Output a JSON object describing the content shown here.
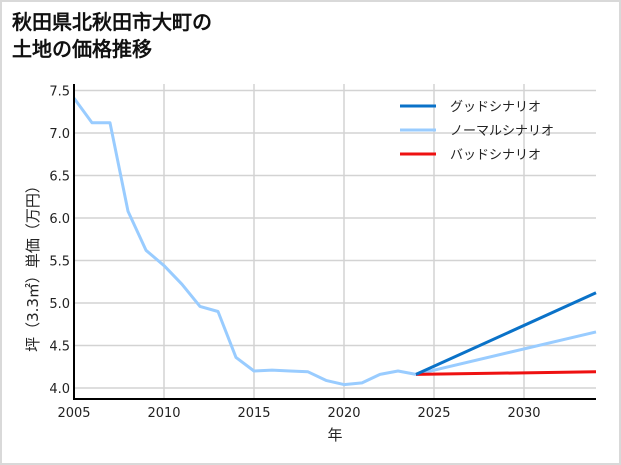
{
  "title": {
    "line1": "秋田県北秋田市大町の",
    "line2": "土地の価格推移"
  },
  "colors": {
    "good": "#0a72c8",
    "normal": "#99ccff",
    "bad": "#ee1111",
    "grid": "#d3d3d3",
    "axis": "#000000",
    "frame": "#d9d9d9"
  },
  "chart_data": {
    "type": "line",
    "title": "秋田県北秋田市大町の土地の価格推移",
    "xlabel": "年",
    "ylabel": "坪（3.3㎡）単価（万円）",
    "xlim": [
      2005,
      2034
    ],
    "ylim": [
      3.87,
      7.6
    ],
    "x_ticks": [
      2005,
      2010,
      2015,
      2020,
      2025,
      2030
    ],
    "y_ticks": [
      4.0,
      4.5,
      5.0,
      5.5,
      6.0,
      6.5,
      7.0,
      7.5
    ],
    "x_tick_labels": [
      "2005",
      "2010",
      "2015",
      "2020",
      "2025",
      "2030"
    ],
    "y_tick_labels": [
      "4.0",
      "4.5",
      "5.0",
      "5.5",
      "6.0",
      "6.5",
      "7.0",
      "7.5"
    ],
    "grid": true,
    "legend_position": "upper right",
    "series": [
      {
        "name": "ノーマルシナリオ",
        "key": "history",
        "x": [
          2005,
          2006,
          2007,
          2008,
          2009,
          2010,
          2011,
          2012,
          2013,
          2014,
          2015,
          2016,
          2017,
          2018,
          2019,
          2020,
          2021,
          2022,
          2023,
          2024
        ],
        "values": [
          7.41,
          7.12,
          7.12,
          6.08,
          5.62,
          5.44,
          5.22,
          4.96,
          4.9,
          4.36,
          4.2,
          4.21,
          4.2,
          4.19,
          4.09,
          4.04,
          4.06,
          4.16,
          4.2,
          4.16
        ]
      },
      {
        "name": "グッドシナリオ",
        "key": "good",
        "x": [
          2024,
          2034
        ],
        "values": [
          4.16,
          5.12
        ]
      },
      {
        "name": "ノーマルシナリオ",
        "key": "normal",
        "x": [
          2024,
          2034
        ],
        "values": [
          4.16,
          4.66
        ]
      },
      {
        "name": "バッドシナリオ",
        "key": "bad",
        "x": [
          2024,
          2034
        ],
        "values": [
          4.16,
          4.19
        ]
      }
    ]
  },
  "legend": [
    {
      "label": "グッドシナリオ",
      "color_key": "good"
    },
    {
      "label": "ノーマルシナリオ",
      "color_key": "normal"
    },
    {
      "label": "バッドシナリオ",
      "color_key": "bad"
    }
  ]
}
